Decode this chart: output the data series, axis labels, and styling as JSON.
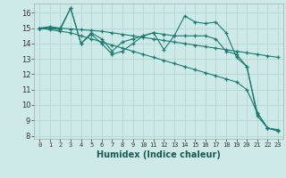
{
  "xlabel": "Humidex (Indice chaleur)",
  "background_color": "#ceeae8",
  "grid_color": "#b8d8d6",
  "line_color": "#1a7a6e",
  "xlim": [
    -0.5,
    23.5
  ],
  "ylim": [
    7.8,
    16.6
  ],
  "yticks": [
    8,
    9,
    10,
    11,
    12,
    13,
    14,
    15,
    16
  ],
  "xticks": [
    0,
    1,
    2,
    3,
    4,
    5,
    6,
    7,
    8,
    9,
    10,
    11,
    12,
    13,
    14,
    15,
    16,
    17,
    18,
    19,
    20,
    21,
    22,
    23
  ],
  "series": [
    [
      15.0,
      15.1,
      15.0,
      16.3,
      14.0,
      14.6,
      14.0,
      13.3,
      13.5,
      14.0,
      14.5,
      14.7,
      13.6,
      14.5,
      15.8,
      15.4,
      15.3,
      15.4,
      14.7,
      13.1,
      12.5,
      9.3,
      8.5,
      8.3
    ],
    [
      15.0,
      14.9,
      14.8,
      14.7,
      14.5,
      14.3,
      14.1,
      13.9,
      13.7,
      13.5,
      13.3,
      13.1,
      12.9,
      12.7,
      12.5,
      12.3,
      12.1,
      11.9,
      11.7,
      11.5,
      11.0,
      9.5,
      8.5,
      8.4
    ],
    [
      15.0,
      15.0,
      15.0,
      14.95,
      14.9,
      14.85,
      14.8,
      14.7,
      14.6,
      14.5,
      14.4,
      14.3,
      14.2,
      14.1,
      14.0,
      13.9,
      13.8,
      13.7,
      13.6,
      13.5,
      13.4,
      13.3,
      13.2,
      13.1
    ],
    [
      15.0,
      15.0,
      14.9,
      16.3,
      14.0,
      14.7,
      14.3,
      13.5,
      14.1,
      14.3,
      14.5,
      14.7,
      14.6,
      14.5,
      14.5,
      14.5,
      14.5,
      14.3,
      13.5,
      13.3,
      12.5,
      9.5,
      8.5,
      8.35
    ]
  ]
}
